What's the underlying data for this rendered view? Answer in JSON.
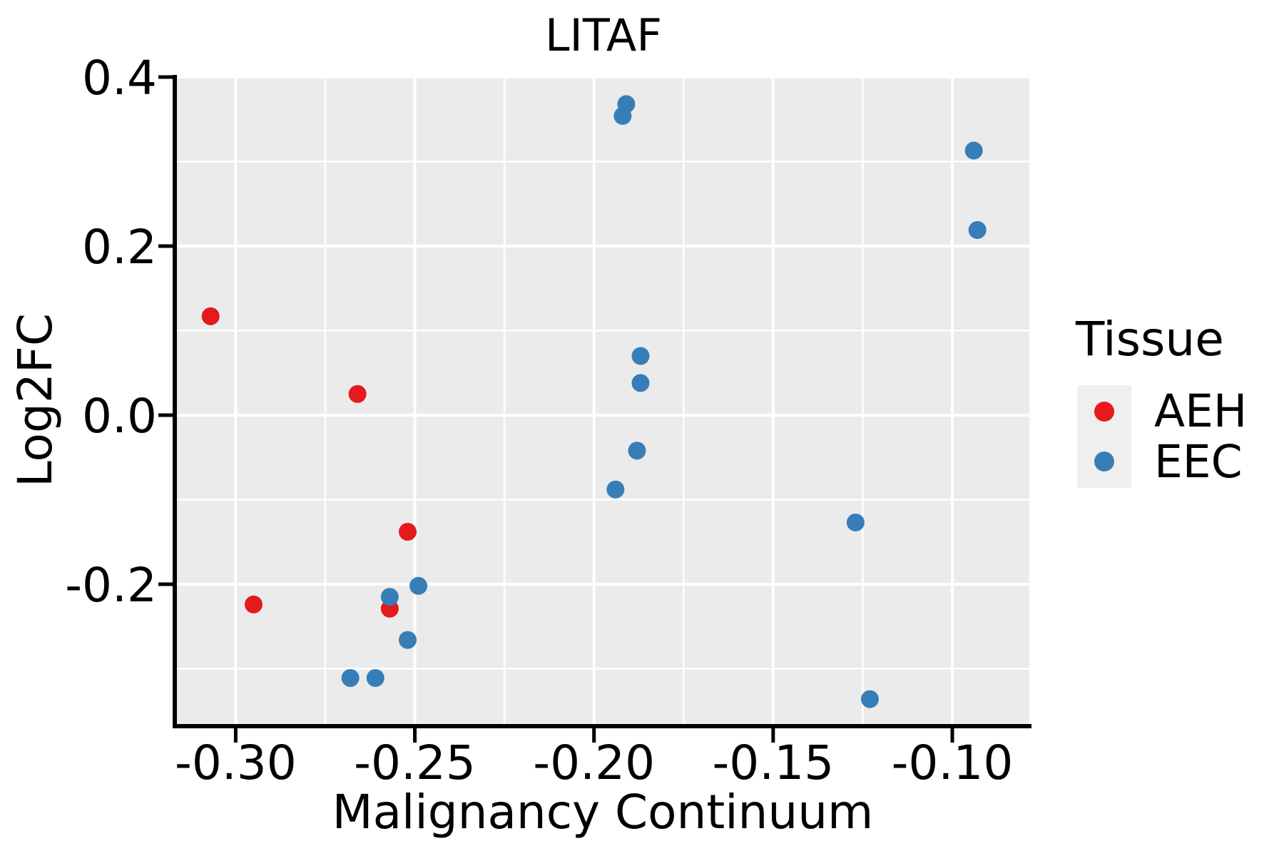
{
  "chart_data": {
    "type": "scatter",
    "title": "LITAF",
    "xlabel": "Malignancy Continuum",
    "ylabel": "Log2FC",
    "xlim": [
      -0.317,
      -0.0785
    ],
    "ylim": [
      -0.368,
      0.4
    ],
    "grid": "on",
    "background_color": "#ebebeb",
    "gridline_color": "#ffffff",
    "axis_color": "#000000",
    "x_ticks": {
      "values": [
        -0.3,
        -0.25,
        -0.2,
        -0.15,
        -0.1
      ],
      "labels": [
        "-0.30",
        "-0.25",
        "-0.20",
        "-0.15",
        "-0.10"
      ]
    },
    "y_ticks": {
      "values": [
        0.4,
        0.2,
        0.0,
        -0.2
      ],
      "labels": [
        "0.4",
        "0.2",
        "0.0",
        "-0.2"
      ]
    },
    "x_minor_gridlines": [
      -0.275,
      -0.225,
      -0.175,
      -0.125
    ],
    "y_minor_gridlines": [
      0.3,
      0.1,
      -0.1,
      -0.3
    ],
    "legend": {
      "title": "Tissue",
      "position": "right",
      "key_background": "#efefef"
    },
    "series": [
      {
        "name": "AEH",
        "color": "#e41a1c",
        "points": [
          [
            -0.307,
            0.117
          ],
          [
            -0.266,
            0.025
          ],
          [
            -0.252,
            -0.138
          ],
          [
            -0.295,
            -0.224
          ],
          [
            -0.257,
            -0.229
          ]
        ]
      },
      {
        "name": "EEC",
        "color": "#377eb8",
        "points": [
          [
            -0.191,
            0.368
          ],
          [
            -0.192,
            0.354
          ],
          [
            -0.094,
            0.313
          ],
          [
            -0.093,
            0.219
          ],
          [
            -0.187,
            0.07
          ],
          [
            -0.187,
            0.038
          ],
          [
            -0.188,
            -0.042
          ],
          [
            -0.194,
            -0.088
          ],
          [
            -0.127,
            -0.127
          ],
          [
            -0.249,
            -0.202
          ],
          [
            -0.257,
            -0.215
          ],
          [
            -0.252,
            -0.266
          ],
          [
            -0.268,
            -0.311
          ],
          [
            -0.261,
            -0.311
          ],
          [
            -0.123,
            -0.336
          ]
        ]
      }
    ]
  }
}
